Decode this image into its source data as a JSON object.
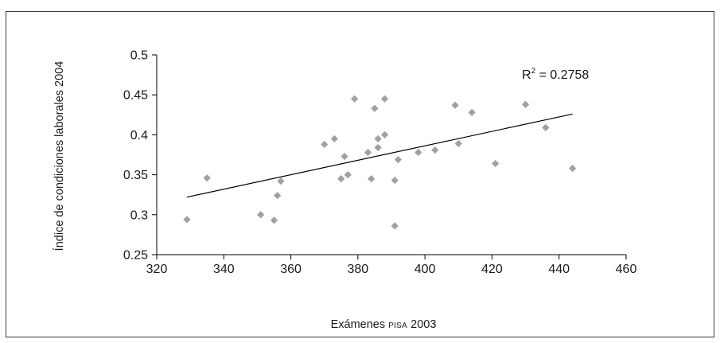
{
  "chart_data": {
    "type": "scatter",
    "xlabel_prefix": "Exámenes",
    "xlabel_smallcaps": "PISA",
    "xlabel_suffix": "2003",
    "ylabel": "Índice de condiciones laborales 2004",
    "xlim": [
      320,
      460
    ],
    "ylim": [
      0.25,
      0.5
    ],
    "xticks": [
      "320",
      "340",
      "360",
      "380",
      "400",
      "420",
      "440",
      "460"
    ],
    "yticks": [
      "0.25",
      "0.3",
      "0.35",
      "0.4",
      "0.45",
      "0.5"
    ],
    "marker_color": "#a0a0a0",
    "trendline": {
      "x": [
        329,
        444
      ],
      "y": [
        0.322,
        0.426
      ]
    },
    "annotation": {
      "r_label": "R",
      "superscript": "2",
      "value_text": " = 0.2758"
    },
    "points": [
      {
        "x": 329,
        "y": 0.294
      },
      {
        "x": 335,
        "y": 0.346
      },
      {
        "x": 351,
        "y": 0.3
      },
      {
        "x": 355,
        "y": 0.293
      },
      {
        "x": 356,
        "y": 0.324
      },
      {
        "x": 357,
        "y": 0.342
      },
      {
        "x": 370,
        "y": 0.388
      },
      {
        "x": 373,
        "y": 0.395
      },
      {
        "x": 375,
        "y": 0.345
      },
      {
        "x": 376,
        "y": 0.373
      },
      {
        "x": 377,
        "y": 0.35
      },
      {
        "x": 379,
        "y": 0.445
      },
      {
        "x": 383,
        "y": 0.378
      },
      {
        "x": 384,
        "y": 0.345
      },
      {
        "x": 385,
        "y": 0.433
      },
      {
        "x": 386,
        "y": 0.384
      },
      {
        "x": 386,
        "y": 0.395
      },
      {
        "x": 388,
        "y": 0.445
      },
      {
        "x": 388,
        "y": 0.4
      },
      {
        "x": 391,
        "y": 0.343
      },
      {
        "x": 391,
        "y": 0.286
      },
      {
        "x": 392,
        "y": 0.369
      },
      {
        "x": 398,
        "y": 0.378
      },
      {
        "x": 403,
        "y": 0.381
      },
      {
        "x": 409,
        "y": 0.437
      },
      {
        "x": 410,
        "y": 0.389
      },
      {
        "x": 414,
        "y": 0.428
      },
      {
        "x": 421,
        "y": 0.364
      },
      {
        "x": 430,
        "y": 0.438
      },
      {
        "x": 436,
        "y": 0.409
      },
      {
        "x": 444,
        "y": 0.358
      }
    ]
  }
}
